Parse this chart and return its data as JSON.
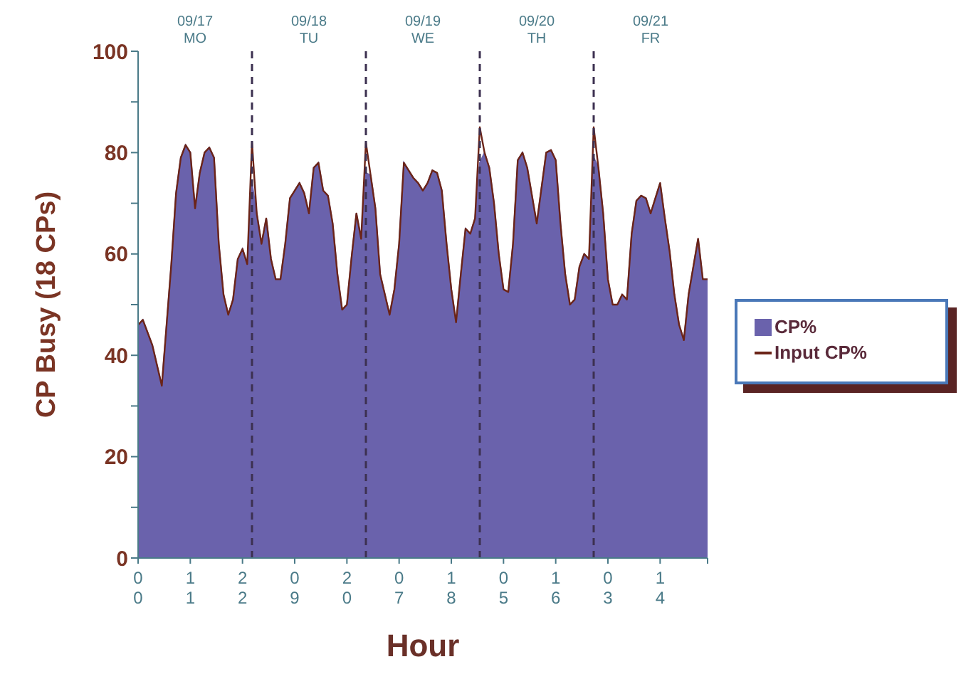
{
  "chart_data": {
    "type": "area",
    "xlabel": "Hour",
    "ylabel": "CP Busy (18 CPs)",
    "x": [
      "--09-17T00:00",
      "--09-17T01:00",
      "--09-17T02:00",
      "--09-17T03:00",
      "--09-17T04:00",
      "--09-17T05:00",
      "--09-17T06:00",
      "--09-17T07:00",
      "--09-17T08:00",
      "--09-17T09:00",
      "--09-17T10:00",
      "--09-17T11:00",
      "--09-17T12:00",
      "--09-17T13:00",
      "--09-17T14:00",
      "--09-17T15:00",
      "--09-17T16:00",
      "--09-17T17:00",
      "--09-17T18:00",
      "--09-17T19:00",
      "--09-17T20:00",
      "--09-17T21:00",
      "--09-17T22:00",
      "--09-17T23:00",
      "--09-18T00:00",
      "--09-18T01:00",
      "--09-18T02:00",
      "--09-18T03:00",
      "--09-18T04:00",
      "--09-18T05:00",
      "--09-18T06:00",
      "--09-18T07:00",
      "--09-18T08:00",
      "--09-18T09:00",
      "--09-18T10:00",
      "--09-18T11:00",
      "--09-18T12:00",
      "--09-18T13:00",
      "--09-18T14:00",
      "--09-18T15:00",
      "--09-18T16:00",
      "--09-18T17:00",
      "--09-18T18:00",
      "--09-18T19:00",
      "--09-18T20:00",
      "--09-18T21:00",
      "--09-18T22:00",
      "--09-18T23:00",
      "--09-19T00:00",
      "--09-19T01:00",
      "--09-19T02:00",
      "--09-19T03:00",
      "--09-19T04:00",
      "--09-19T05:00",
      "--09-19T06:00",
      "--09-19T07:00",
      "--09-19T08:00",
      "--09-19T09:00",
      "--09-19T10:00",
      "--09-19T11:00",
      "--09-19T12:00",
      "--09-19T13:00",
      "--09-19T14:00",
      "--09-19T15:00",
      "--09-19T16:00",
      "--09-19T17:00",
      "--09-19T18:00",
      "--09-19T19:00",
      "--09-19T20:00",
      "--09-19T21:00",
      "--09-19T22:00",
      "--09-19T23:00",
      "--09-20T00:00",
      "--09-20T01:00",
      "--09-20T02:00",
      "--09-20T03:00",
      "--09-20T04:00",
      "--09-20T05:00",
      "--09-20T06:00",
      "--09-20T07:00",
      "--09-20T08:00",
      "--09-20T09:00",
      "--09-20T10:00",
      "--09-20T11:00",
      "--09-20T12:00",
      "--09-20T13:00",
      "--09-20T14:00",
      "--09-20T15:00",
      "--09-20T16:00",
      "--09-20T17:00",
      "--09-20T18:00",
      "--09-20T19:00",
      "--09-20T20:00",
      "--09-20T21:00",
      "--09-20T22:00",
      "--09-20T23:00",
      "--09-21T00:00",
      "--09-21T01:00",
      "--09-21T02:00",
      "--09-21T03:00",
      "--09-21T04:00",
      "--09-21T05:00",
      "--09-21T06:00",
      "--09-21T07:00",
      "--09-21T08:00",
      "--09-21T09:00",
      "--09-21T10:00",
      "--09-21T11:00",
      "--09-21T12:00",
      "--09-21T13:00",
      "--09-21T14:00",
      "--09-21T15:00",
      "--09-21T16:00",
      "--09-21T17:00",
      "--09-21T18:00",
      "--09-21T19:00",
      "--09-21T20:00",
      "--09-21T21:00",
      "--09-21T22:00",
      "--09-21T23:00",
      "--09-22T00:00"
    ],
    "series": [
      {
        "name": "CP%",
        "color": "#6a62ac",
        "values": [
          46,
          47,
          44.5,
          42,
          38,
          34,
          46,
          58,
          72,
          79,
          81.5,
          80,
          69,
          76,
          80,
          81,
          79,
          62,
          52,
          48,
          51,
          59,
          61,
          58,
          74,
          68,
          62,
          67,
          59,
          55,
          55,
          62,
          71,
          72.5,
          74,
          72,
          68,
          77,
          78,
          72.5,
          71.5,
          66,
          56,
          49,
          50,
          59.5,
          68,
          63,
          76,
          75.5,
          69,
          56,
          52,
          48,
          53,
          62,
          78,
          76.5,
          75,
          74,
          72.5,
          74,
          76.5,
          76,
          72.5,
          62,
          53,
          46.5,
          56,
          65,
          64,
          67,
          78,
          80,
          77,
          70,
          60,
          53,
          52.5,
          62,
          78.5,
          80,
          77,
          71.5,
          66,
          73,
          80,
          80.5,
          78.5,
          66,
          56,
          50,
          51,
          57.5,
          60,
          59,
          79,
          77,
          68,
          55,
          50,
          50,
          52,
          51,
          64,
          70.5,
          71.5,
          71,
          68,
          71,
          74,
          67,
          60.5,
          52,
          46,
          43,
          52,
          57.5,
          63,
          55,
          55
        ]
      },
      {
        "name": "Input CP%",
        "type": "line",
        "color": "#6b2418",
        "values": [
          46,
          47,
          44.5,
          42,
          38,
          34,
          46,
          58,
          72,
          79,
          81.5,
          80,
          69,
          76,
          80,
          81,
          79,
          62,
          52,
          48,
          51,
          59,
          61,
          58,
          82,
          68,
          62,
          67,
          59,
          55,
          55,
          62,
          71,
          72.5,
          74,
          72,
          68,
          77,
          78,
          72.5,
          71.5,
          66,
          56,
          49,
          50,
          59.5,
          68,
          63,
          82,
          75.5,
          69,
          56,
          52,
          48,
          53,
          62,
          78,
          76.5,
          75,
          74,
          72.5,
          74,
          76.5,
          76,
          72.5,
          62,
          53,
          46.5,
          56,
          65,
          64,
          67,
          85,
          80,
          77,
          70,
          60,
          53,
          52.5,
          62,
          78.5,
          80,
          77,
          71.5,
          66,
          73,
          80,
          80.5,
          78.5,
          66,
          56,
          50,
          51,
          57.5,
          60,
          59,
          85,
          77,
          68,
          55,
          50,
          50,
          52,
          51,
          64,
          70.5,
          71.5,
          71,
          68,
          71,
          74,
          67,
          60.5,
          52,
          46,
          43,
          52,
          57.5,
          63,
          55,
          55
        ]
      }
    ],
    "xlim": [
      "--09-17T00:00",
      "--09-22T00:00"
    ],
    "xticks": [
      {
        "value": "--09-17T00:00",
        "label": "00"
      },
      {
        "value": "--09-17T11:00",
        "label": "11"
      },
      {
        "value": "--09-17T22:00",
        "label": "22"
      },
      {
        "value": "--09-18T09:00",
        "label": "09"
      },
      {
        "value": "--09-18T20:00",
        "label": "20"
      },
      {
        "value": "--09-19T07:00",
        "label": "07"
      },
      {
        "value": "--09-19T18:00",
        "label": "18"
      },
      {
        "value": "--09-20T05:00",
        "label": "05"
      },
      {
        "value": "--09-20T16:00",
        "label": "16"
      },
      {
        "value": "--09-21T03:00",
        "label": "03"
      },
      {
        "value": "--09-21T14:00",
        "label": "14"
      },
      {
        "value": "--09-22T00:00",
        "label": null
      }
    ],
    "ylim": [
      0,
      100
    ],
    "yticks": [
      0,
      {
        "value": 10,
        "label": null
      },
      20,
      {
        "value": 30,
        "label": null
      },
      40,
      {
        "value": 50,
        "label": null
      },
      60,
      {
        "value": 70,
        "label": null
      },
      80,
      {
        "value": 90,
        "label": null
      },
      100
    ],
    "ref_lines": [
      {
        "axis": "x",
        "value": "--09-18T00:00",
        "line_style": "dashed",
        "color": "#3c3050"
      },
      {
        "axis": "x",
        "value": "--09-19T00:00",
        "line_style": "dashed",
        "color": "#3c3050"
      },
      {
        "axis": "x",
        "value": "--09-20T00:00",
        "line_style": "dashed",
        "color": "#3c3050"
      },
      {
        "axis": "x",
        "value": "--09-21T00:00",
        "line_style": "dashed",
        "color": "#3c3050"
      }
    ],
    "annotations": [
      "09/17 MO",
      "09/18 TU",
      "09/19 WE",
      "09/20 TH",
      "09/21 FR"
    ],
    "legend": "right",
    "grid": false,
    "marker": "none"
  }
}
